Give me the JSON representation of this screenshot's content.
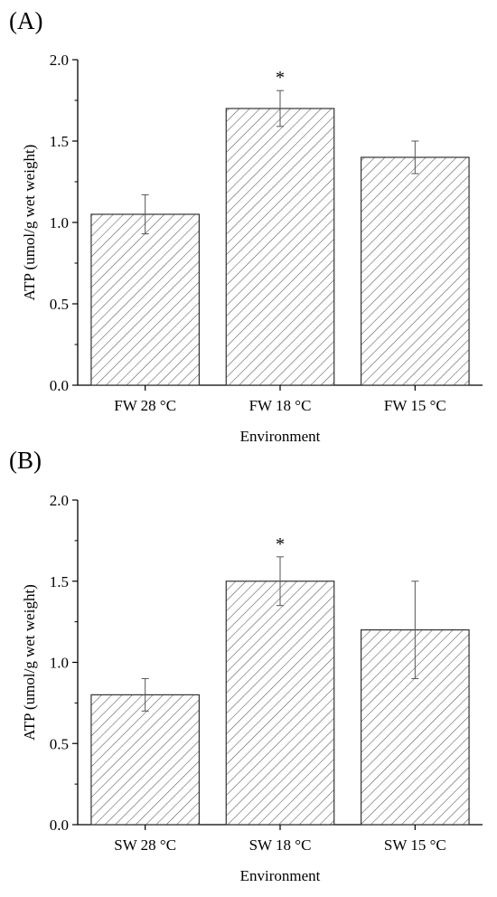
{
  "chart_data": [
    {
      "type": "bar",
      "panel_label": "(A)",
      "categories": [
        "FW 28 °C",
        "FW 18 °C",
        "FW 15 °C"
      ],
      "values": [
        1.05,
        1.7,
        1.4
      ],
      "errors": [
        0.12,
        0.11,
        0.1
      ],
      "annotations": [
        "",
        "*",
        ""
      ],
      "xlabel": "Environment",
      "ylabel": "ATP (umol/g wet weight)",
      "ylim": [
        0.0,
        2.0
      ],
      "yticks": [
        "0.0",
        "0.5",
        "1.0",
        "1.5",
        "2.0"
      ],
      "fill": "diagonal hatch",
      "grid": false
    },
    {
      "type": "bar",
      "panel_label": "(B)",
      "categories": [
        "SW 28 °C",
        "SW 18 °C",
        "SW 15 °C"
      ],
      "values": [
        0.8,
        1.5,
        1.2
      ],
      "errors": [
        0.1,
        0.15,
        0.3
      ],
      "annotations": [
        "",
        "*",
        ""
      ],
      "xlabel": "Environment",
      "ylabel": "ATP (umol/g wet weight)",
      "ylim": [
        0.0,
        2.0
      ],
      "yticks": [
        "0.0",
        "0.5",
        "1.0",
        "1.5",
        "2.0"
      ],
      "fill": "diagonal hatch",
      "grid": false
    }
  ]
}
